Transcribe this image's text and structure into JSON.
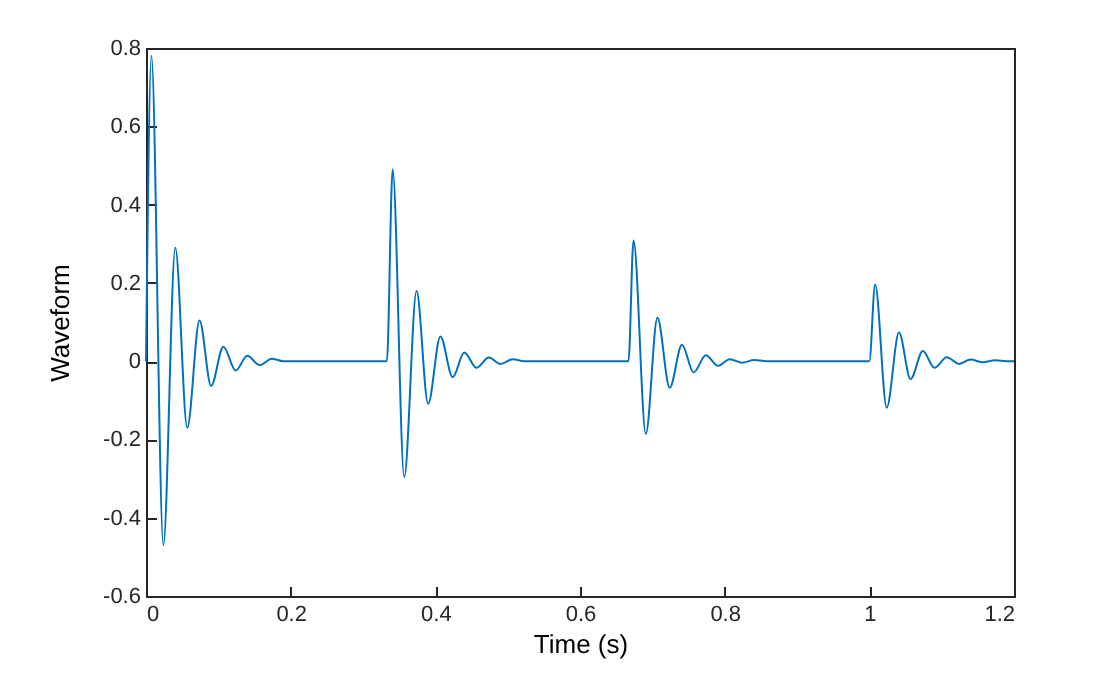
{
  "chart_data": {
    "type": "line",
    "xlabel": "Time (s)",
    "ylabel": "Waveform",
    "xlim": [
      0,
      1.2
    ],
    "xticks": [
      0,
      0.2,
      0.4,
      0.6,
      0.8,
      1,
      1.2
    ],
    "ylim": [
      -0.6,
      0.8
    ],
    "yticks": [
      -0.6,
      -0.4,
      -0.2,
      0,
      0.2,
      0.4,
      0.6,
      0.8
    ],
    "grid": false,
    "series": [
      {
        "color": "#0072bd",
        "x": [
          0,
          0.0075,
          0.024,
          0.0405,
          0.057,
          0.074,
          0.09,
          0.107,
          0.124,
          0.14,
          0.157,
          0.174,
          0.19,
          0.333,
          0.341,
          0.357,
          0.374,
          0.39,
          0.407,
          0.424,
          0.44,
          0.457,
          0.474,
          0.49,
          0.507,
          0.523,
          0.667,
          0.674,
          0.691,
          0.707,
          0.724,
          0.741,
          0.757,
          0.774,
          0.791,
          0.807,
          0.824,
          0.841,
          0.857,
          1.0,
          1.008,
          1.024,
          1.041,
          1.057,
          1.074,
          1.09,
          1.107,
          1.124,
          1.14,
          1.157,
          1.174,
          1.19,
          1.2
        ],
        "values": [
          0,
          0.78,
          -0.47,
          0.29,
          -0.17,
          0.104,
          -0.063,
          0.037,
          -0.024,
          0.014,
          -0.01,
          0.006,
          0,
          0,
          0.49,
          -0.296,
          0.179,
          -0.109,
          0.063,
          -0.041,
          0.022,
          -0.017,
          0.009,
          -0.007,
          0.005,
          0,
          0,
          0.308,
          -0.186,
          0.111,
          -0.068,
          0.042,
          -0.029,
          0.015,
          -0.012,
          0.005,
          -0.004,
          0.003,
          0,
          0,
          0.196,
          -0.119,
          0.073,
          -0.046,
          0.026,
          -0.017,
          0.01,
          -0.007,
          0.004,
          -0.003,
          0.002,
          0,
          0
        ]
      }
    ]
  }
}
